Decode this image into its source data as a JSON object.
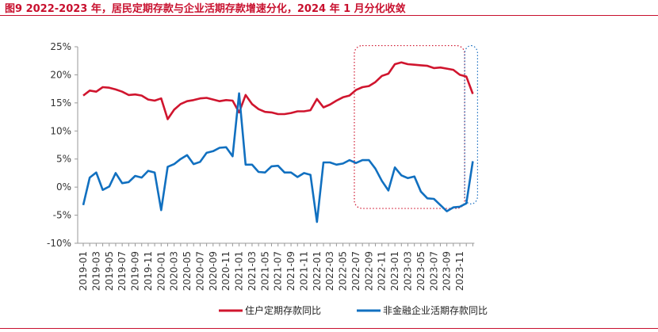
{
  "title": "图9  2022-2023 年，居民定期存款与企业活期存款增速分化，2024 年 1 月分化收敛",
  "colors": {
    "accent": "#c8102e",
    "series_red": "#d0152e",
    "series_blue": "#1170c0",
    "highlight_red": "#d0152e",
    "highlight_blue": "#1a6fc0"
  },
  "chart_data": {
    "type": "line",
    "xlabel": "",
    "ylabel": "",
    "ylim": [
      -10,
      25
    ],
    "yticks": [
      "25%",
      "20%",
      "15%",
      "10%",
      "5%",
      "0%",
      "-5%",
      "-10%"
    ],
    "ytick_values": [
      25,
      20,
      15,
      10,
      5,
      0,
      -5,
      -10
    ],
    "x": [
      "2019-01",
      "2019-02",
      "2019-03",
      "2019-04",
      "2019-05",
      "2019-06",
      "2019-07",
      "2019-08",
      "2019-09",
      "2019-10",
      "2019-11",
      "2019-12",
      "2020-01",
      "2020-02",
      "2020-03",
      "2020-04",
      "2020-05",
      "2020-06",
      "2020-07",
      "2020-08",
      "2020-09",
      "2020-10",
      "2020-11",
      "2020-12",
      "2021-01",
      "2021-02",
      "2021-03",
      "2021-04",
      "2021-05",
      "2021-06",
      "2021-07",
      "2021-08",
      "2021-09",
      "2021-10",
      "2021-11",
      "2021-12",
      "2022-01",
      "2022-02",
      "2022-03",
      "2022-04",
      "2022-05",
      "2022-06",
      "2022-07",
      "2022-08",
      "2022-09",
      "2022-10",
      "2022-11",
      "2022-12",
      "2023-01",
      "2023-02",
      "2023-03",
      "2023-04",
      "2023-05",
      "2023-06",
      "2023-07",
      "2023-08",
      "2023-09",
      "2023-10",
      "2023-11",
      "2023-12",
      "2024-01"
    ],
    "xtick_labels": [
      "2019-01",
      "2019-03",
      "2019-05",
      "2019-07",
      "2019-09",
      "2019-11",
      "2020-01",
      "2020-03",
      "2020-05",
      "2020-07",
      "2020-09",
      "2020-11",
      "2021-01",
      "2021-03",
      "2021-05",
      "2021-07",
      "2021-09",
      "2021-11",
      "2022-01",
      "2022-03",
      "2022-05",
      "2022-07",
      "2022-09",
      "2022-11",
      "2023-01",
      "2023-03",
      "2023-05",
      "2023-07",
      "2023-09",
      "2023-11"
    ],
    "series": [
      {
        "name": "住户定期存款同比",
        "color": "#d0152e",
        "values": [
          16.3,
          17.2,
          17.0,
          17.8,
          17.7,
          17.4,
          17.0,
          16.4,
          16.5,
          16.3,
          15.6,
          15.4,
          15.8,
          12.1,
          13.8,
          14.8,
          15.3,
          15.5,
          15.8,
          15.9,
          15.6,
          15.3,
          15.5,
          15.4,
          13.3,
          16.4,
          14.8,
          13.9,
          13.4,
          13.3,
          13.0,
          13.0,
          13.2,
          13.5,
          13.5,
          13.7,
          15.7,
          14.2,
          14.7,
          15.4,
          16.0,
          16.3,
          17.3,
          17.8,
          18.0,
          18.7,
          19.8,
          20.2,
          21.9,
          22.2,
          21.9,
          21.8,
          21.7,
          21.6,
          21.2,
          21.3,
          21.1,
          20.9,
          20.0,
          19.7,
          16.6
        ]
      },
      {
        "name": "非金融企业活期存款同比",
        "color": "#1170c0",
        "values": [
          -3.2,
          1.7,
          2.6,
          -0.5,
          0.1,
          2.5,
          0.7,
          0.9,
          2.0,
          1.7,
          2.9,
          2.6,
          -4.1,
          3.6,
          4.1,
          5.0,
          5.7,
          4.1,
          4.5,
          6.1,
          6.4,
          7.0,
          7.1,
          5.5,
          16.7,
          4.0,
          4.0,
          2.7,
          2.6,
          3.7,
          3.8,
          2.6,
          2.6,
          1.8,
          2.5,
          2.2,
          -6.2,
          4.4,
          4.4,
          4.0,
          4.2,
          4.8,
          4.3,
          4.8,
          4.8,
          3.3,
          1.1,
          -0.6,
          3.5,
          2.1,
          1.6,
          1.9,
          -0.8,
          -2.0,
          -2.1,
          -3.2,
          -4.3,
          -3.6,
          -3.5,
          -2.9,
          4.6
        ]
      }
    ],
    "legend": {
      "placement": "bottom-center"
    },
    "grid": false,
    "annotations": [
      {
        "type": "dotted-box",
        "color": "#d0152e",
        "from": "2022-07",
        "to": "2023-11",
        "y_from": -3.8,
        "y_to": 25.2
      },
      {
        "type": "dotted-box",
        "color": "#1a6fc0",
        "from": "2023-12",
        "to": "2024-01",
        "y_from": -3.0,
        "y_to": 25.2
      }
    ]
  }
}
